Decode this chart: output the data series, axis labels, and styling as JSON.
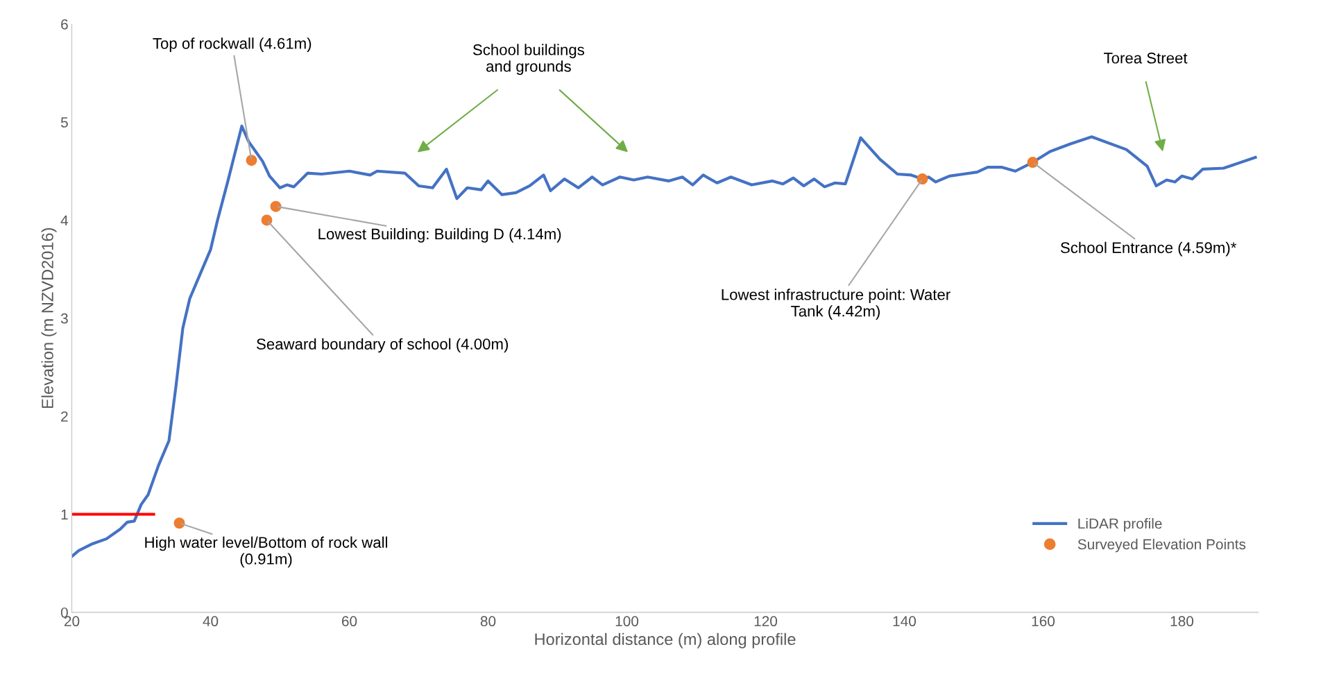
{
  "chart_data": {
    "type": "line",
    "xlabel": "Horizontal distance (m) along profile",
    "ylabel": "Elevation (m NZVD2016)",
    "xlim": [
      20,
      191
    ],
    "ylim": [
      0,
      6
    ],
    "xticks": [
      20,
      40,
      60,
      80,
      100,
      120,
      140,
      160,
      180
    ],
    "yticks": [
      0,
      1,
      2,
      3,
      4,
      5,
      6
    ],
    "grid": false,
    "legend": "bottom right",
    "series": [
      {
        "name": "LiDAR profile",
        "color": "#4472c4",
        "marker": "none",
        "x": [
          20,
          21,
          23,
          25,
          27,
          28,
          29,
          30,
          31,
          32.5,
          34,
          35,
          36,
          37,
          38.5,
          40,
          41,
          42.5,
          44.5,
          45.5,
          46.5,
          47.5,
          48.5,
          50,
          51,
          52,
          54,
          56,
          60,
          63,
          64,
          68,
          70,
          72,
          74,
          75.5,
          77,
          79,
          80,
          82,
          84,
          86,
          88,
          89,
          91,
          93,
          95,
          96.5,
          99,
          101,
          103,
          106,
          108,
          109.5,
          111,
          113,
          115,
          118,
          121,
          122.5,
          124,
          125.5,
          127,
          128.5,
          130,
          131.5,
          133.7,
          136.5,
          139,
          141,
          142.6,
          143.5,
          144.5,
          146.5,
          148.5,
          150.5,
          152,
          154,
          156,
          158.5,
          161,
          164,
          167,
          172,
          175,
          176.3,
          177.8,
          179,
          180,
          181.5,
          183,
          186,
          190.6
        ],
        "values": [
          0.57,
          0.63,
          0.7,
          0.75,
          0.85,
          0.92,
          0.93,
          1.1,
          1.2,
          1.5,
          1.75,
          2.3,
          2.9,
          3.2,
          3.45,
          3.7,
          4.0,
          4.4,
          4.96,
          4.8,
          4.7,
          4.6,
          4.45,
          4.33,
          4.36,
          4.34,
          4.48,
          4.47,
          4.5,
          4.46,
          4.5,
          4.48,
          4.35,
          4.33,
          4.52,
          4.22,
          4.33,
          4.31,
          4.4,
          4.26,
          4.28,
          4.35,
          4.46,
          4.3,
          4.42,
          4.33,
          4.44,
          4.36,
          4.44,
          4.41,
          4.44,
          4.4,
          4.44,
          4.36,
          4.46,
          4.38,
          4.44,
          4.36,
          4.4,
          4.37,
          4.43,
          4.35,
          4.42,
          4.34,
          4.38,
          4.37,
          4.84,
          4.62,
          4.47,
          4.46,
          4.42,
          4.44,
          4.39,
          4.45,
          4.47,
          4.49,
          4.54,
          4.54,
          4.5,
          4.59,
          4.7,
          4.78,
          4.85,
          4.72,
          4.55,
          4.35,
          4.41,
          4.39,
          4.45,
          4.42,
          4.52,
          4.53,
          4.64
        ]
      },
      {
        "name": "Surveyed Elevation Points",
        "type": "scatter",
        "color": "#ed7d31",
        "marker": "circle",
        "x": [
          35.5,
          45.9,
          48.1,
          49.4,
          142.6,
          158.5
        ],
        "values": [
          0.91,
          4.61,
          4.0,
          4.14,
          4.42,
          4.59
        ]
      },
      {
        "type": "line",
        "color": "#ff0000",
        "marker": "none",
        "x": [
          20,
          31.8
        ],
        "values": [
          1,
          1
        ]
      }
    ],
    "annotations": [
      {
        "text": "High water level/Bottom of rock wall\n(0.91m)",
        "x": 35.5,
        "y": 0.91
      },
      {
        "text": "Top of rockwall (4.61m)",
        "x": 45.9,
        "y": 4.61
      },
      {
        "text": "Seaward boundary of school (4.00m)",
        "x": 48.1,
        "y": 4.0
      },
      {
        "text": "Lowest Building: Building D (4.14m)",
        "x": 49.4,
        "y": 4.14
      },
      {
        "text": "Lowest infrastructure point: Water\nTank (4.42m)",
        "x": 142.6,
        "y": 4.42
      },
      {
        "text": "School Entrance (4.59m)*",
        "x": 158.5,
        "y": 4.59
      },
      "School buildings\nand grounds",
      "Torea Street"
    ]
  }
}
